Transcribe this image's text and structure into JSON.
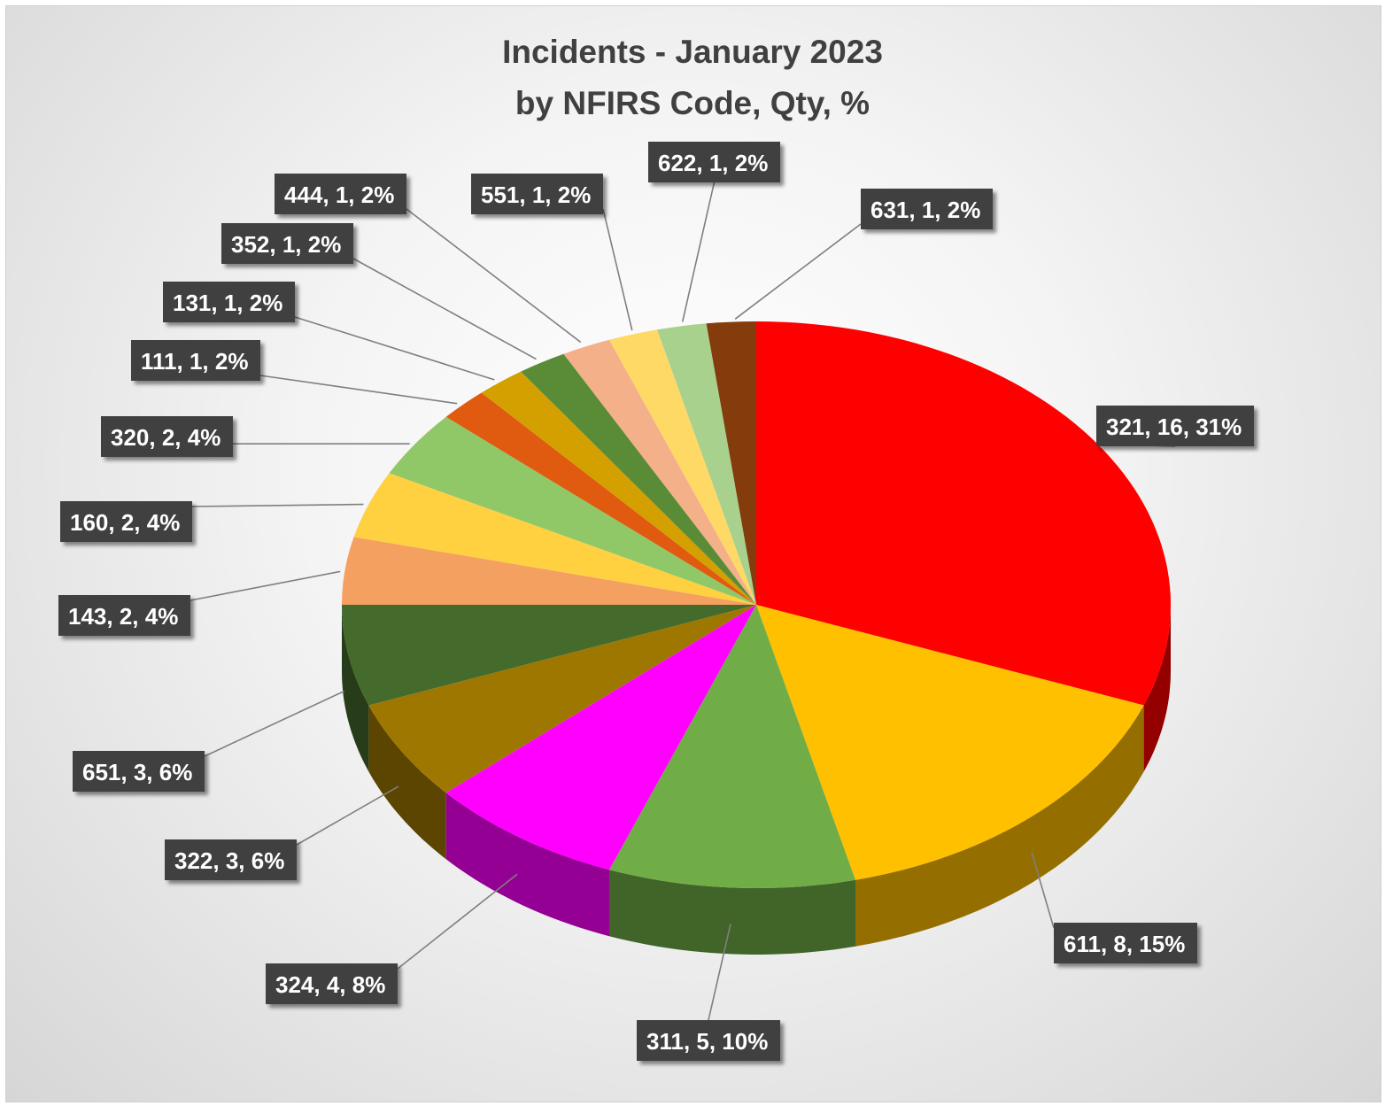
{
  "chart_data": {
    "type": "pie",
    "style": "3d-exploded-perspective",
    "title": "Incidents - January 2023",
    "subtitle": "by NFIRS Code, Qty, %",
    "slices": [
      {
        "code": "321",
        "qty": 16,
        "label": "321, 16, 31%",
        "color": "#ff0000"
      },
      {
        "code": "611",
        "qty": 8,
        "label": "611, 8, 15%",
        "color": "#ffc000"
      },
      {
        "code": "311",
        "qty": 5,
        "label": "311, 5, 10%",
        "color": "#70ad47"
      },
      {
        "code": "324",
        "qty": 4,
        "label": "324, 4, 8%",
        "color": "#ff00ff"
      },
      {
        "code": "322",
        "qty": 3,
        "label": "322, 3, 6%",
        "color": "#9e7700"
      },
      {
        "code": "651",
        "qty": 3,
        "label": "651, 3, 6%",
        "color": "#446a2c"
      },
      {
        "code": "143",
        "qty": 2,
        "label": "143, 2, 4%",
        "color": "#f4a060"
      },
      {
        "code": "160",
        "qty": 2,
        "label": "160, 2, 4%",
        "color": "#ffd040"
      },
      {
        "code": "320",
        "qty": 2,
        "label": "320, 2, 4%",
        "color": "#90c868"
      },
      {
        "code": "111",
        "qty": 1,
        "label": "111, 1, 2%",
        "color": "#e05a10"
      },
      {
        "code": "131",
        "qty": 1,
        "label": "131, 1, 2%",
        "color": "#d4a000"
      },
      {
        "code": "352",
        "qty": 1,
        "label": "352, 1, 2%",
        "color": "#5a8c38"
      },
      {
        "code": "444",
        "qty": 1,
        "label": "444, 1, 2%",
        "color": "#f4b088"
      },
      {
        "code": "551",
        "qty": 1,
        "label": "551, 1, 2%",
        "color": "#ffd966"
      },
      {
        "code": "622",
        "qty": 1,
        "label": "622, 1, 2%",
        "color": "#a9d18e"
      },
      {
        "code": "631",
        "qty": 1,
        "label": "631, 1, 2%",
        "color": "#843c0c"
      }
    ],
    "legend": "none",
    "data_labels": "outside with leader lines"
  }
}
